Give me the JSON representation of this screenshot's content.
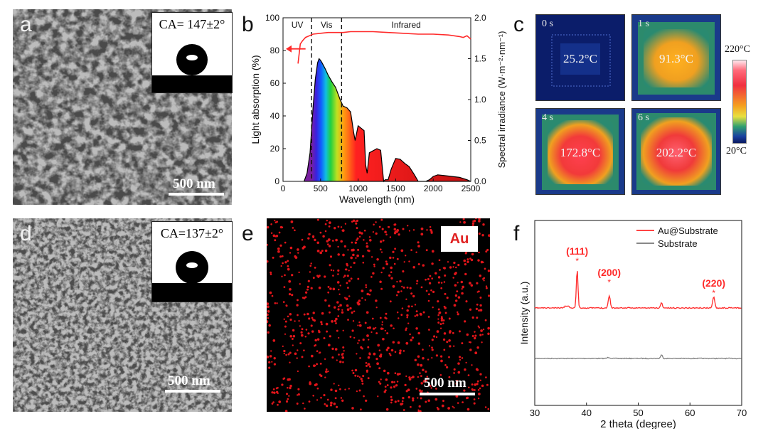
{
  "panel_a": {
    "label": "a",
    "contact_angle": "CA= 147±2°",
    "scale": "500 nm"
  },
  "panel_b": {
    "label": "b"
  },
  "panel_c": {
    "label": "c",
    "frames": [
      {
        "time": "0 s",
        "temp": "25.2°C"
      },
      {
        "time": "1 s",
        "temp": "91.3°C"
      },
      {
        "time": "4 s",
        "temp": "172.8°C"
      },
      {
        "time": "6 s",
        "temp": "202.2°C"
      }
    ],
    "colorbar_max": "220°C",
    "colorbar_min": "20°C"
  },
  "panel_d": {
    "label": "d",
    "contact_angle": "CA=137±2°",
    "scale": "500 nm"
  },
  "panel_e": {
    "label": "e",
    "element": "Au",
    "scale": "500 nm"
  },
  "panel_f": {
    "label": "f"
  },
  "chart_data": [
    {
      "type": "line",
      "xlabel": "Wavelength (nm)",
      "ylabel": "Light absorption (%)",
      "y2label": "Spectral irradiance (W·m⁻²·nm⁻¹)",
      "xlim": [
        0,
        2500
      ],
      "ylim": [
        0,
        100
      ],
      "y2lim": [
        0,
        2.0
      ],
      "xticks": [
        0,
        500,
        1000,
        1500,
        2000,
        2500
      ],
      "yticks": [
        0,
        20,
        40,
        60,
        80,
        100
      ],
      "y2ticks": [
        0.0,
        0.5,
        1.0,
        1.5,
        2.0
      ],
      "regions": [
        {
          "label": "UV",
          "start": 0,
          "end": 380
        },
        {
          "label": "Vis",
          "start": 380,
          "end": 780
        },
        {
          "label": "Infrared",
          "start": 780,
          "end": 2500
        }
      ],
      "dividers": [
        380,
        780
      ],
      "series": [
        {
          "axis": "left",
          "color": "#ff2a2a",
          "x": [
            200,
            230,
            260,
            300,
            350,
            400,
            500,
            600,
            700,
            800,
            900,
            1000,
            1200,
            1400,
            1600,
            1800,
            2000,
            2200,
            2350,
            2400,
            2450,
            2500
          ],
          "values": [
            72,
            84,
            86,
            88,
            89,
            90,
            90.5,
            91,
            91,
            91,
            91.5,
            91.5,
            91.5,
            91,
            90.5,
            90,
            90,
            89.5,
            88.5,
            88,
            89,
            87
          ]
        },
        {
          "axis": "right",
          "color": "#000000",
          "x": [
            280,
            320,
            360,
            400,
            430,
            460,
            480,
            500,
            520,
            560,
            600,
            650,
            700,
            760,
            800,
            850,
            900,
            940,
            960,
            1000,
            1080,
            1100,
            1120,
            1150,
            1250,
            1300,
            1340,
            1360,
            1400,
            1440,
            1500,
            1560,
            1620,
            1680,
            1750,
            1800,
            1900,
            1950,
            2000,
            2060,
            2150,
            2250,
            2350,
            2450,
            2500
          ],
          "values": [
            0.0,
            0.1,
            0.35,
            0.9,
            1.25,
            1.45,
            1.5,
            1.48,
            1.45,
            1.38,
            1.3,
            1.22,
            1.15,
            1.0,
            0.92,
            0.9,
            0.85,
            0.6,
            0.5,
            0.68,
            0.62,
            0.2,
            0.1,
            0.35,
            0.4,
            0.38,
            0.0,
            0.02,
            0.02,
            0.15,
            0.28,
            0.27,
            0.22,
            0.18,
            0.08,
            0.0,
            0.0,
            0.02,
            0.06,
            0.08,
            0.07,
            0.06,
            0.05,
            0.02,
            0.0
          ]
        }
      ],
      "annotation": "arrow pointing to left axis"
    },
    {
      "type": "line",
      "xlabel": "2 theta (degree)",
      "ylabel": "Intensity (a.u.)",
      "xlim": [
        30,
        70
      ],
      "xticks": [
        30,
        40,
        50,
        60,
        70
      ],
      "series": [
        {
          "name": "Au@Substrate",
          "color": "#ff2a2a",
          "peaks": [
            {
              "x": 38.2,
              "label": "(111)"
            },
            {
              "x": 44.4,
              "label": "(200)"
            },
            {
              "x": 64.6,
              "label": "(220)"
            }
          ]
        },
        {
          "name": "Substrate",
          "color": "#777777"
        }
      ]
    }
  ]
}
